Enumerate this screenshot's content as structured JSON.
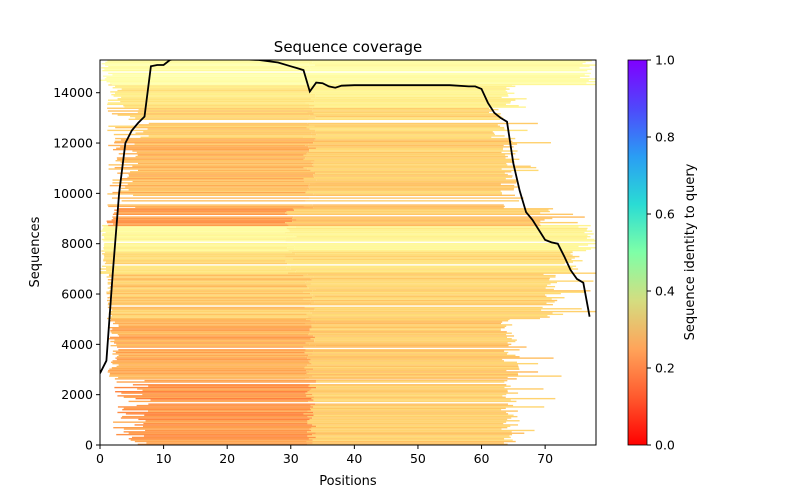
{
  "chart_data": {
    "type": "heatmap",
    "title": "Sequence coverage",
    "xlabel": "Positions",
    "ylabel": "Sequences",
    "xlim": [
      0,
      78
    ],
    "ylim": [
      0,
      15300
    ],
    "xticks": [
      "0",
      "10",
      "20",
      "30",
      "40",
      "50",
      "60",
      "70"
    ],
    "yticks": [
      "0",
      "2000",
      "4000",
      "6000",
      "8000",
      "10000",
      "12000",
      "14000"
    ],
    "colorbar": {
      "label": "Sequence identity to query",
      "range": [
        0,
        1
      ],
      "ticks": [
        "0.0",
        "0.2",
        "0.4",
        "0.6",
        "0.8",
        "1.0"
      ],
      "colormap": "rainbow_r"
    },
    "bands": [
      {
        "y0": 0,
        "y1": 2600,
        "x_start": 2,
        "x_core": 8,
        "x_mid": 33,
        "x_end": 66,
        "id_core": 0.2,
        "id_tail": 0.3
      },
      {
        "y0": 2600,
        "y1": 5000,
        "x_start": 1,
        "x_core": 3,
        "x_mid": 33,
        "x_end": 66,
        "id_core": 0.24,
        "id_tail": 0.29
      },
      {
        "y0": 5000,
        "y1": 6800,
        "x_start": 1,
        "x_core": 2,
        "x_mid": 33,
        "x_end": 72,
        "id_core": 0.29,
        "id_tail": 0.31
      },
      {
        "y0": 6800,
        "y1": 7700,
        "x_start": 0,
        "x_core": 1,
        "x_mid": 30,
        "x_end": 76,
        "id_core": 0.33,
        "id_tail": 0.34
      },
      {
        "y0": 7700,
        "y1": 8700,
        "x_start": 0,
        "x_core": 1,
        "x_mid": 30,
        "x_end": 78,
        "id_core": 0.42,
        "id_tail": 0.4
      },
      {
        "y0": 8700,
        "y1": 9400,
        "x_start": 1,
        "x_core": 3,
        "x_mid": 30,
        "x_end": 72,
        "id_core": 0.22,
        "id_tail": 0.29
      },
      {
        "y0": 9400,
        "y1": 12200,
        "x_start": 1,
        "x_core": 6,
        "x_mid": 33,
        "x_end": 66,
        "id_core": 0.26,
        "id_tail": 0.3
      },
      {
        "y0": 12200,
        "y1": 13400,
        "x_start": 1,
        "x_core": 8,
        "x_mid": 33,
        "x_end": 64,
        "id_core": 0.3,
        "id_tail": 0.32
      },
      {
        "y0": 13400,
        "y1": 14300,
        "x_start": 1,
        "x_core": 4,
        "x_mid": 33,
        "x_end": 66,
        "id_core": 0.36,
        "id_tail": 0.4
      },
      {
        "y0": 14300,
        "y1": 15300,
        "x_start": 0,
        "x_core": 2,
        "x_mid": 33,
        "x_end": 78,
        "id_core": 0.46,
        "id_tail": 0.45
      }
    ],
    "coverage_line": {
      "x": [
        0,
        1,
        2,
        3,
        4,
        5,
        6,
        7,
        8,
        9,
        10,
        11,
        12,
        13,
        15,
        20,
        25,
        28,
        30,
        31,
        32,
        33,
        34,
        35,
        36,
        37,
        38,
        40,
        45,
        50,
        55,
        58,
        59,
        60,
        61,
        62,
        63,
        64,
        65,
        66,
        67,
        68,
        69,
        70,
        71,
        72,
        73,
        74,
        75,
        76,
        77
      ],
      "y": [
        2850,
        3350,
        6800,
        10000,
        12000,
        12500,
        12800,
        13050,
        15050,
        15100,
        15100,
        15300,
        15350,
        15350,
        15350,
        15350,
        15300,
        15200,
        15050,
        14980,
        14900,
        14050,
        14400,
        14380,
        14250,
        14200,
        14280,
        14300,
        14300,
        14300,
        14300,
        14250,
        14250,
        14150,
        13600,
        13200,
        13000,
        12850,
        11200,
        10100,
        9250,
        8950,
        8550,
        8150,
        8050,
        8000,
        7500,
        6950,
        6600,
        6450,
        5100
      ]
    }
  }
}
